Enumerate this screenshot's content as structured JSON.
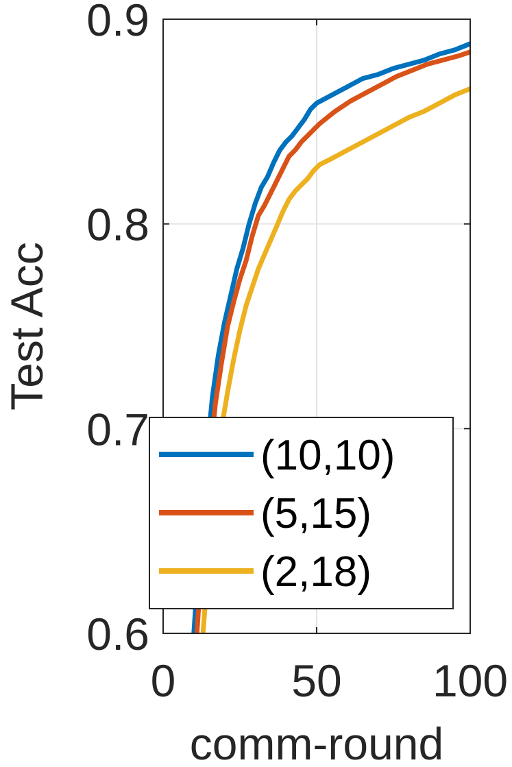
{
  "chart_data": {
    "type": "line",
    "xlabel": "comm-round",
    "ylabel": "Test Acc",
    "xlim": [
      0,
      100
    ],
    "ylim": [
      0.6,
      0.9
    ],
    "xticks": [
      0,
      50,
      100
    ],
    "xtick_labels": [
      "0",
      "50",
      "100"
    ],
    "yticks": [
      0.6,
      0.7,
      0.8,
      0.9
    ],
    "ytick_labels": [
      "0.6",
      "0.7",
      "0.8",
      "0.9"
    ],
    "grid": true,
    "legend_position": "bottom-left",
    "series": [
      {
        "name": "(10,10)",
        "color": "#0072BD",
        "x": [
          10,
          12,
          14,
          16,
          18,
          20,
          22,
          24,
          26,
          28,
          30,
          32,
          34,
          36,
          38,
          40,
          42,
          44,
          46,
          48,
          50,
          55,
          60,
          65,
          70,
          75,
          80,
          85,
          90,
          95,
          100
        ],
        "y": [
          0.6,
          0.645,
          0.683,
          0.715,
          0.736,
          0.752,
          0.765,
          0.778,
          0.788,
          0.8,
          0.81,
          0.818,
          0.823,
          0.83,
          0.836,
          0.84,
          0.843,
          0.847,
          0.851,
          0.856,
          0.859,
          0.863,
          0.867,
          0.871,
          0.873,
          0.876,
          0.878,
          0.88,
          0.883,
          0.885,
          0.888
        ]
      },
      {
        "name": "(5,15)",
        "color": "#D95319",
        "x": [
          11,
          13,
          15,
          17,
          19,
          21,
          23,
          25,
          27,
          29,
          31,
          33,
          35,
          37,
          39,
          41,
          43,
          45,
          47,
          49,
          51,
          56,
          61,
          66,
          71,
          76,
          81,
          86,
          91,
          96,
          100
        ],
        "y": [
          0.6,
          0.646,
          0.682,
          0.712,
          0.732,
          0.75,
          0.762,
          0.773,
          0.782,
          0.794,
          0.804,
          0.809,
          0.815,
          0.821,
          0.827,
          0.833,
          0.836,
          0.84,
          0.843,
          0.846,
          0.849,
          0.855,
          0.86,
          0.864,
          0.868,
          0.872,
          0.875,
          0.878,
          0.88,
          0.882,
          0.884
        ]
      },
      {
        "name": "(2,18)",
        "color": "#EDB120",
        "x": [
          13,
          15,
          17,
          19,
          21,
          23,
          25,
          27,
          29,
          31,
          33,
          35,
          37,
          39,
          41,
          43,
          45,
          47,
          49,
          51,
          55,
          60,
          65,
          70,
          75,
          80,
          85,
          90,
          95,
          100
        ],
        "y": [
          0.6,
          0.64,
          0.672,
          0.7,
          0.718,
          0.734,
          0.748,
          0.76,
          0.769,
          0.778,
          0.785,
          0.792,
          0.799,
          0.806,
          0.812,
          0.816,
          0.819,
          0.822,
          0.826,
          0.829,
          0.832,
          0.836,
          0.84,
          0.844,
          0.848,
          0.852,
          0.855,
          0.859,
          0.863,
          0.866
        ]
      }
    ]
  }
}
